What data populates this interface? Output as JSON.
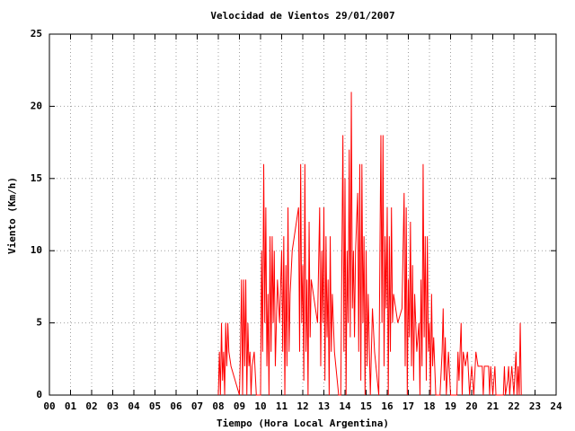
{
  "chart_data": {
    "type": "line",
    "title": "Velocidad de Vientos 29/01/2007",
    "x_label": "Tiempo (Hora Local Argentina)",
    "y_label": "Viento (Km/h)",
    "color": "#ff0000",
    "grid": true,
    "xlim": [
      0,
      24
    ],
    "ylim": [
      0,
      25
    ],
    "xticks": [
      {
        "value": 0,
        "label": "00"
      },
      {
        "value": 1,
        "label": "01"
      },
      {
        "value": 2,
        "label": "02"
      },
      {
        "value": 3,
        "label": "03"
      },
      {
        "value": 4,
        "label": "04"
      },
      {
        "value": 5,
        "label": "05"
      },
      {
        "value": 6,
        "label": "06"
      },
      {
        "value": 7,
        "label": "07"
      },
      {
        "value": 8,
        "label": "08"
      },
      {
        "value": 9,
        "label": "09"
      },
      10,
      11,
      12,
      13,
      14,
      15,
      16,
      17,
      18,
      19,
      20,
      21,
      22,
      23,
      24
    ],
    "yticks": [
      0,
      5,
      10,
      15,
      20,
      25
    ],
    "x": [
      8.0,
      8.05,
      8.1,
      8.15,
      8.2,
      8.25,
      8.3,
      8.35,
      8.4,
      8.45,
      8.5,
      8.6,
      9.0,
      9.05,
      9.1,
      9.15,
      9.2,
      9.25,
      9.3,
      9.35,
      9.4,
      9.45,
      9.5,
      9.55,
      9.6,
      9.7,
      9.8,
      10.0,
      10.05,
      10.1,
      10.15,
      10.2,
      10.25,
      10.3,
      10.35,
      10.4,
      10.45,
      10.5,
      10.55,
      10.6,
      10.65,
      10.7,
      10.8,
      10.9,
      11.0,
      11.05,
      11.1,
      11.15,
      11.2,
      11.25,
      11.3,
      11.35,
      11.4,
      11.5,
      11.7,
      11.8,
      11.85,
      11.9,
      11.95,
      12.0,
      12.05,
      12.1,
      12.15,
      12.2,
      12.25,
      12.3,
      12.35,
      12.4,
      12.5,
      12.7,
      12.8,
      12.85,
      12.9,
      12.95,
      13.0,
      13.05,
      13.1,
      13.15,
      13.2,
      13.25,
      13.3,
      13.35,
      13.4,
      13.5,
      13.7,
      13.8,
      13.85,
      13.9,
      13.95,
      14.0,
      14.05,
      14.1,
      14.15,
      14.2,
      14.25,
      14.3,
      14.35,
      14.4,
      14.45,
      14.5,
      14.6,
      14.65,
      14.7,
      14.75,
      14.8,
      14.85,
      14.9,
      14.95,
      15.0,
      15.05,
      15.1,
      15.2,
      15.3,
      15.4,
      15.6,
      15.7,
      15.75,
      15.8,
      15.85,
      15.9,
      15.95,
      16.0,
      16.05,
      16.1,
      16.15,
      16.2,
      16.25,
      16.3,
      16.5,
      16.7,
      16.8,
      16.85,
      16.9,
      16.95,
      17.0,
      17.05,
      17.1,
      17.15,
      17.2,
      17.25,
      17.3,
      17.4,
      17.5,
      17.55,
      17.6,
      17.65,
      17.7,
      17.75,
      17.8,
      17.85,
      17.9,
      17.95,
      18.0,
      18.05,
      18.1,
      18.15,
      18.2,
      18.3,
      18.5,
      18.6,
      18.65,
      18.7,
      18.75,
      18.8,
      18.9,
      19.0,
      19.3,
      19.35,
      19.4,
      19.5,
      19.55,
      19.6,
      19.7,
      19.8,
      19.9,
      20.0,
      20.1,
      20.2,
      20.3,
      20.5,
      20.55,
      20.6,
      20.8,
      20.85,
      20.9,
      21.0,
      21.1,
      21.15,
      21.5,
      21.55,
      21.6,
      21.7,
      21.75,
      21.8,
      21.9,
      22.0,
      22.1,
      22.15,
      22.2,
      22.25,
      22.3,
      22.35
    ],
    "values": [
      0,
      3,
      0,
      5,
      1,
      3,
      0,
      5,
      2,
      5,
      3,
      2,
      0,
      3,
      8,
      0,
      8,
      2,
      8,
      0,
      5,
      2,
      3,
      0,
      2,
      3,
      0,
      0,
      10,
      3,
      16,
      5,
      13,
      2,
      7,
      0,
      11,
      3,
      11,
      5,
      10,
      2,
      8,
      5,
      10,
      3,
      11,
      0,
      9,
      2,
      13,
      3,
      7,
      10,
      12,
      13,
      3,
      16,
      5,
      9,
      1,
      16,
      3,
      8,
      0,
      12,
      4,
      8,
      7,
      5,
      13,
      2,
      10,
      5,
      13,
      1,
      11,
      4,
      8,
      0,
      11,
      3,
      7,
      3,
      0,
      0,
      9,
      18,
      3,
      15,
      0,
      10,
      5,
      17,
      4,
      21,
      6,
      10,
      4,
      10,
      14,
      3,
      16,
      1,
      16,
      5,
      11,
      0,
      10,
      2,
      7,
      0,
      6,
      3,
      0,
      18,
      5,
      18,
      2,
      11,
      6,
      13,
      0,
      11,
      3,
      13,
      5,
      7,
      5,
      6,
      14,
      2,
      13,
      0,
      8,
      4,
      12,
      2,
      9,
      1,
      7,
      3,
      5,
      0,
      8,
      2,
      16,
      4,
      11,
      1,
      11,
      3,
      5,
      0,
      7,
      2,
      4,
      0,
      0,
      3,
      6,
      1,
      4,
      0,
      3,
      0,
      0,
      3,
      1,
      5,
      0,
      3,
      2,
      3,
      0,
      2,
      0,
      3,
      2,
      2,
      0,
      2,
      2,
      0,
      2,
      0,
      2,
      0,
      0,
      2,
      0,
      1,
      2,
      0,
      2,
      0,
      3,
      0,
      2,
      0,
      5,
      0
    ]
  }
}
